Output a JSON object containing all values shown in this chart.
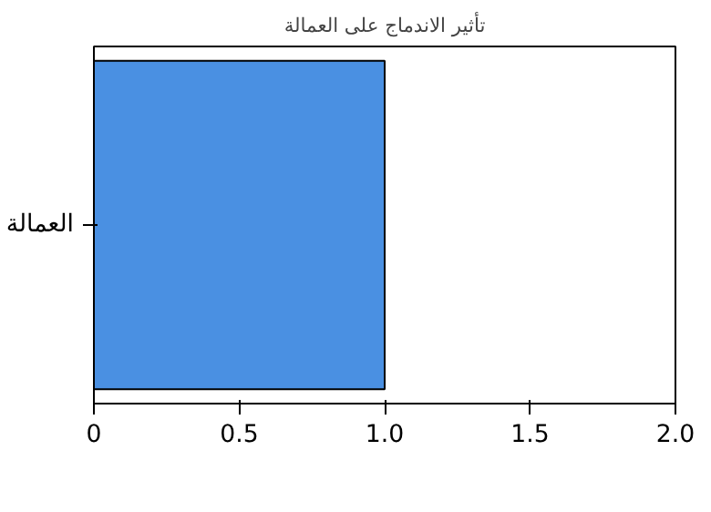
{
  "chart_data": {
    "type": "bar",
    "orientation": "horizontal",
    "title": "تأثير الاندماج على العمالة",
    "categories": [
      "العمالة"
    ],
    "values": [
      1.0
    ],
    "color": "#4a90e2",
    "xlim": [
      0,
      2
    ],
    "xticks": [
      0,
      {
        "value": 0.5,
        "label": "0.5"
      },
      {
        "value": 1,
        "label": "1.0"
      },
      {
        "value": 1.5,
        "label": "1.5"
      },
      {
        "value": 2,
        "label": "2.0"
      }
    ],
    "grid": false
  }
}
